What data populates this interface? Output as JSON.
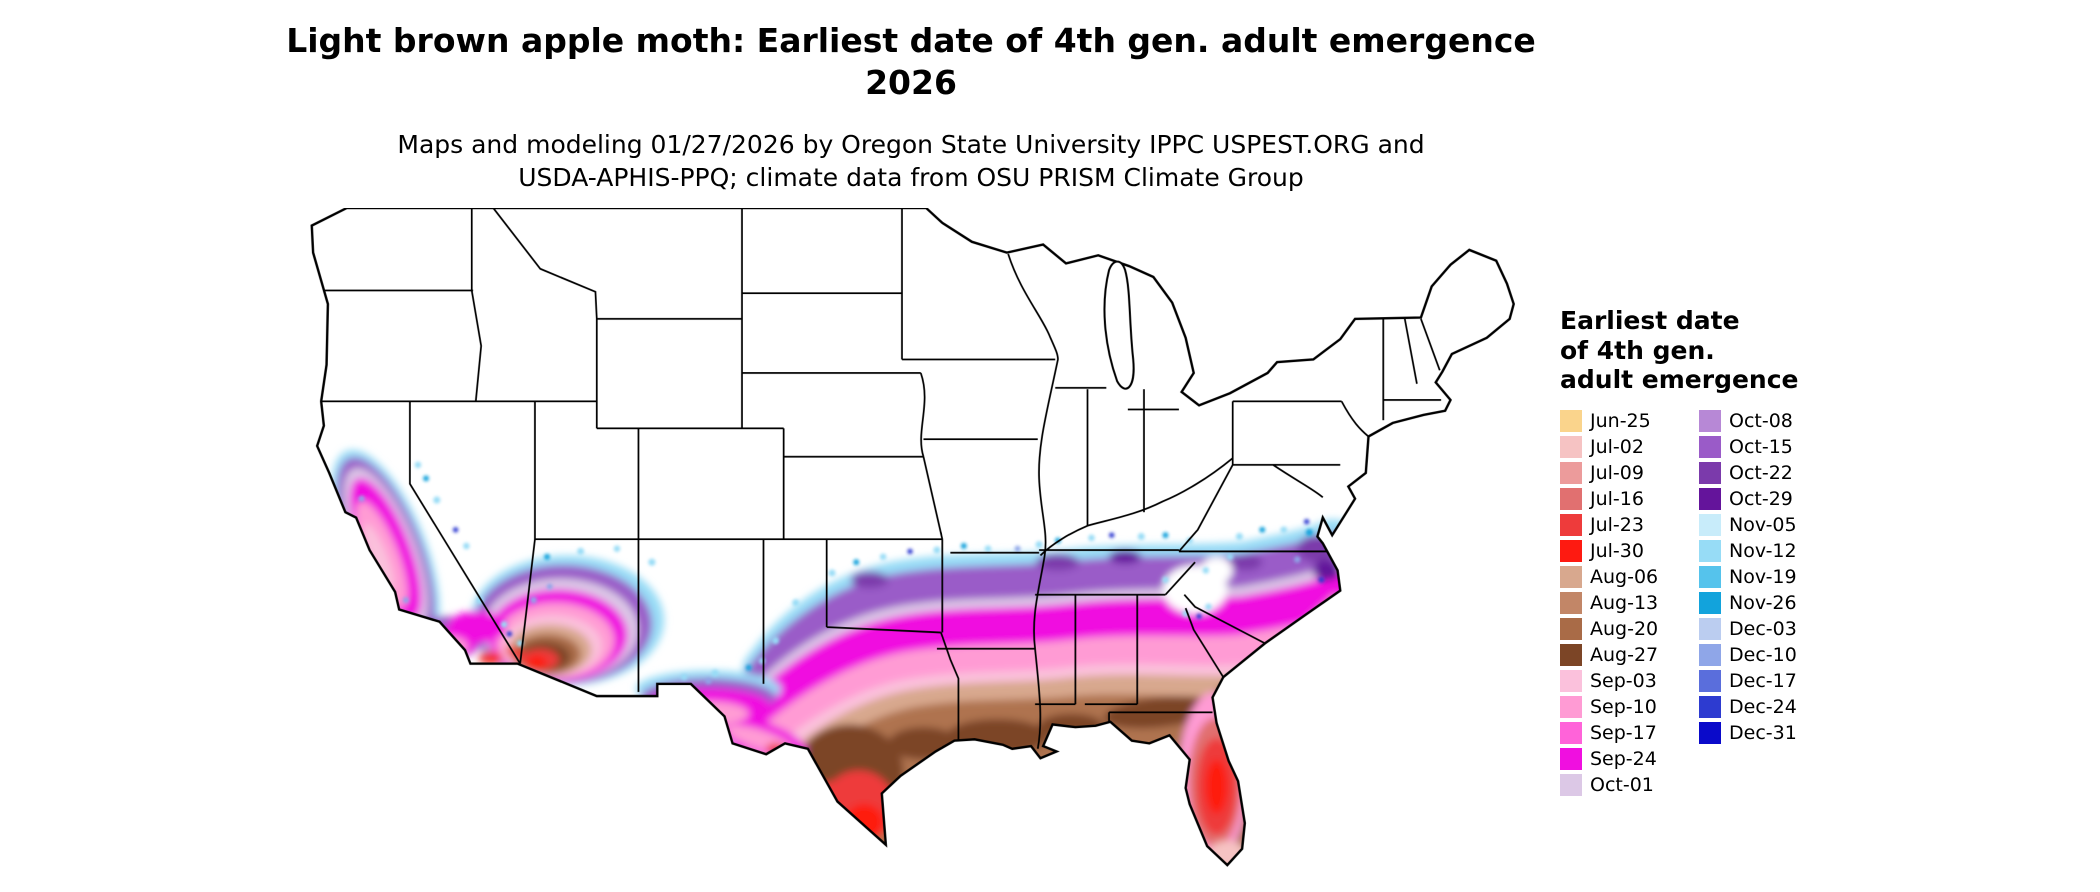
{
  "header": {
    "title_line1": "Light brown apple moth: Earliest date of 4th gen. adult emergence",
    "title_line2": "2026",
    "subtitle_line1": "Maps and modeling 01/27/2026 by Oregon State University IPPC USPEST.ORG and",
    "subtitle_line2": "USDA-APHIS-PPQ; climate data from OSU PRISM Climate Group"
  },
  "legend": {
    "title_line1": "Earliest date",
    "title_line2": "of 4th gen.",
    "title_line3": "adult emergence",
    "columns": [
      [
        {
          "label": "Jun-25",
          "color": "#FAD48C"
        },
        {
          "label": "Jul-02",
          "color": "#F6C3C3"
        },
        {
          "label": "Jul-09",
          "color": "#EC9B9B"
        },
        {
          "label": "Jul-16",
          "color": "#E17070"
        },
        {
          "label": "Jul-23",
          "color": "#EE3B3B"
        },
        {
          "label": "Jul-30",
          "color": "#FE1A11"
        },
        {
          "label": "Aug-06",
          "color": "#D8A88E"
        },
        {
          "label": "Aug-13",
          "color": "#C28667"
        },
        {
          "label": "Aug-20",
          "color": "#A96B47"
        },
        {
          "label": "Aug-27",
          "color": "#7C4526"
        },
        {
          "label": "Sep-03",
          "color": "#FBC1DC"
        },
        {
          "label": "Sep-10",
          "color": "#FF9BD4"
        },
        {
          "label": "Sep-17",
          "color": "#FF63D9"
        },
        {
          "label": "Sep-24",
          "color": "#F00FE0"
        },
        {
          "label": "Oct-01",
          "color": "#DCC8E6"
        }
      ],
      [
        {
          "label": "Oct-08",
          "color": "#B788D6"
        },
        {
          "label": "Oct-15",
          "color": "#9A5BC8"
        },
        {
          "label": "Oct-22",
          "color": "#7B3AAB"
        },
        {
          "label": "Oct-29",
          "color": "#64149B"
        },
        {
          "label": "Nov-05",
          "color": "#C8ECFA"
        },
        {
          "label": "Nov-12",
          "color": "#97DCF6"
        },
        {
          "label": "Nov-19",
          "color": "#55C3EC"
        },
        {
          "label": "Nov-26",
          "color": "#12A3DC"
        },
        {
          "label": "Dec-03",
          "color": "#BBCDF0"
        },
        {
          "label": "Dec-10",
          "color": "#8FA6E8"
        },
        {
          "label": "Dec-17",
          "color": "#5A6EDC"
        },
        {
          "label": "Dec-24",
          "color": "#2D3BD0"
        },
        {
          "label": "Dec-31",
          "color": "#0A0ACA"
        }
      ]
    ]
  }
}
